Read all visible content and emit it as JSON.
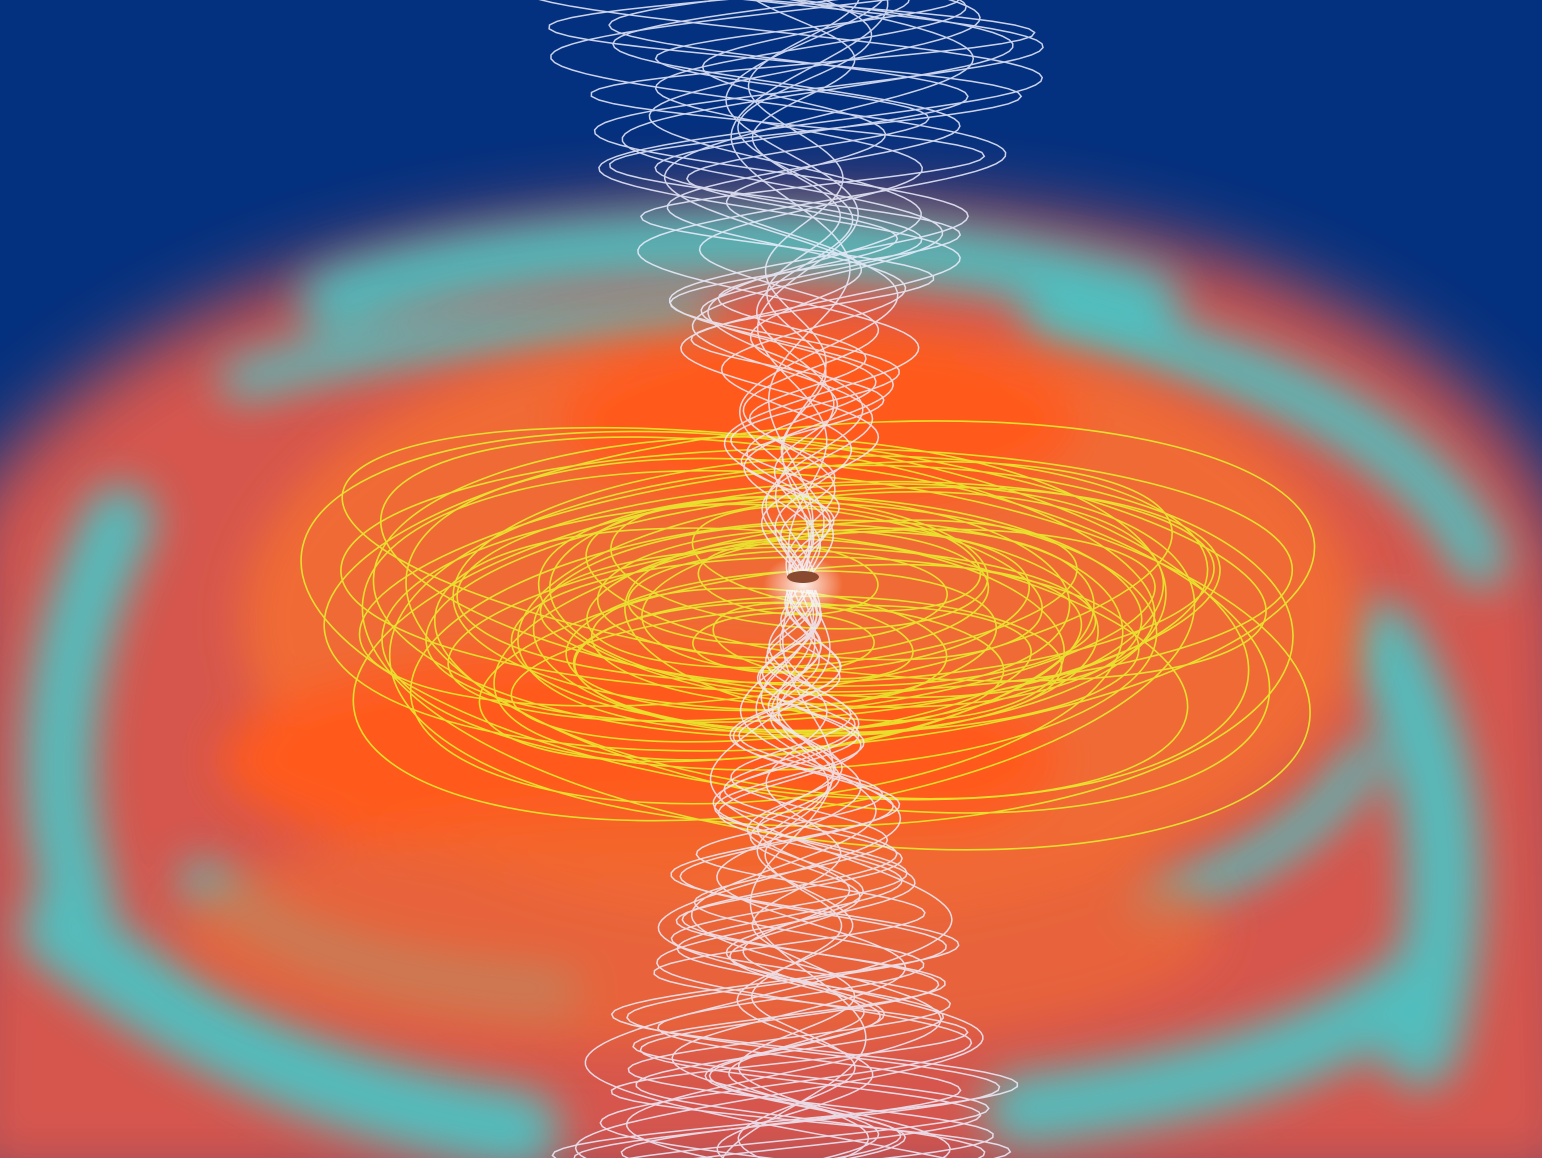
{
  "image": {
    "kind": "scientific-visualization",
    "palette": {
      "background": "#04317f",
      "disk_orange": "#f06a35",
      "disk_hot": "#ff5a1a",
      "envelope_cyan": "#3ad0d2",
      "envelope_red": "#e2584c",
      "field_yellow": "#e8ec2e",
      "jet_white": "#eef0ff",
      "core_brown": "#8a4a30"
    },
    "elements": [
      {
        "name": "background-sky",
        "color_key": "background"
      },
      {
        "name": "outer-envelope",
        "color_key": "envelope_red"
      },
      {
        "name": "cyan-shell",
        "color_key": "envelope_cyan"
      },
      {
        "name": "accretion-disk",
        "color_key": "disk_orange"
      },
      {
        "name": "toroidal-field-lines",
        "color_key": "field_yellow"
      },
      {
        "name": "polar-jet-field-lines",
        "color_key": "jet_white"
      },
      {
        "name": "central-core",
        "color_key": "core_brown"
      }
    ]
  }
}
